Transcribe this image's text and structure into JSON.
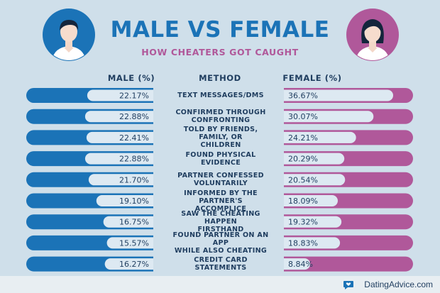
{
  "header": {
    "title": "MALE VS FEMALE",
    "subtitle": "HOW CHEATERS GOT CAUGHT"
  },
  "columns": {
    "male": "MALE (%)",
    "method": "METHOD",
    "female": "FEMALE (%)"
  },
  "colors": {
    "male_blue": "#1b73b7",
    "female_pink": "#b0589a",
    "track": "#dde9f2",
    "background": "#cfdfea",
    "text_navy": "#1f3d5f"
  },
  "chart_data": {
    "type": "bar",
    "orientation": "horizontal-butterfly",
    "categories": [
      "TEXT MESSAGES/DMS",
      "CONFIRMED THROUGH CONFRONTING",
      "TOLD BY FRIENDS, FAMILY, OR CHILDREN",
      "FOUND PHYSICAL EVIDENCE",
      "PARTNER CONFESSED VOLUNTARILY",
      "INFORMED BY THE PARTNER'S ACCOMPLICE",
      "SAW THE CHEATING HAPPEN FIRSTHAND",
      "FOUND PARTNER ON AN APP WHILE ALSO CHEATING",
      "CREDIT CARD STATEMENTS"
    ],
    "category_lines": [
      [
        "TEXT MESSAGES/DMS"
      ],
      [
        "CONFIRMED THROUGH",
        "CONFRONTING"
      ],
      [
        "TOLD BY FRIENDS, FAMILY, OR",
        "CHILDREN"
      ],
      [
        "FOUND PHYSICAL EVIDENCE"
      ],
      [
        "PARTNER CONFESSED",
        "VOLUNTARILY"
      ],
      [
        "INFORMED BY THE PARTNER'S",
        "ACCOMPLICE"
      ],
      [
        "SAW THE CHEATING HAPPEN",
        "FIRSTHAND"
      ],
      [
        "FOUND PARTNER ON AN APP",
        "WHILE ALSO CHEATING"
      ],
      [
        "CREDIT CARD STATEMENTS"
      ]
    ],
    "series": [
      {
        "name": "MALE (%)",
        "values": [
          22.17,
          22.88,
          22.41,
          22.88,
          21.7,
          19.1,
          16.75,
          15.57,
          16.27
        ],
        "labels": [
          "22.17%",
          "22.88%",
          "22.41%",
          "22.88%",
          "21.70%",
          "19.10%",
          "16.75%",
          "15.57%",
          "16.27%"
        ]
      },
      {
        "name": "FEMALE (%)",
        "values": [
          36.67,
          30.07,
          24.21,
          20.29,
          20.54,
          18.09,
          19.32,
          18.83,
          8.84
        ],
        "labels": [
          "36.67%",
          "30.07%",
          "24.21%",
          "20.29%",
          "20.54%",
          "18.09%",
          "19.32%",
          "18.83%",
          "8.84%"
        ]
      }
    ],
    "title": "MALE VS FEMALE",
    "subtitle": "HOW CHEATERS GOT CAUGHT",
    "xlim": [
      0,
      40
    ],
    "grid": false,
    "legend": "column headers"
  },
  "footer": {
    "brand": "DatingAdvice.com",
    "brand_icon": "chat-bubble-heart-icon"
  }
}
